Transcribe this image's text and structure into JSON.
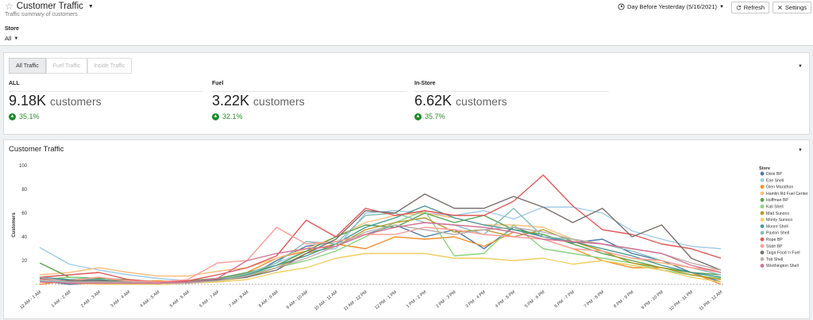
{
  "header": {
    "title": "Customer Traffic",
    "subtitle": "Traffic summary of customers",
    "store_label": "Store",
    "store_value": "All",
    "date_range": "Day Before Yesterday (5/16/2021)",
    "refresh_label": "Refresh",
    "settings_label": "Settings"
  },
  "tabs": [
    "All Traffic",
    "Fuel Traffic",
    "Inside Traffic"
  ],
  "kpis": [
    {
      "label": "ALL",
      "value": "9.18K",
      "unit": "customers",
      "change": "35.1%"
    },
    {
      "label": "Fuel",
      "value": "3.22K",
      "unit": "customers",
      "change": "32.1%"
    },
    {
      "label": "In-Store",
      "value": "6.62K",
      "unit": "customers",
      "change": "35.7%"
    }
  ],
  "colors": {
    "up": "#1f8a2e"
  },
  "chart_title": "Customer Traffic",
  "chart_data": {
    "type": "line",
    "ylabel": "Customers",
    "ylim": [
      0,
      100
    ],
    "yticks": [
      20,
      40,
      60,
      80,
      100
    ],
    "legend_title": "Store",
    "legend_position": "right",
    "x": [
      "12 AM - 1 AM",
      "1 AM - 2 AM",
      "2 AM - 3 AM",
      "3 AM - 4 AM",
      "4 AM - 5 AM",
      "5 AM - 6 AM",
      "6 AM - 7 AM",
      "7 AM - 8 AM",
      "8 AM - 9 AM",
      "9 AM - 10 AM",
      "10 AM - 11 AM",
      "11 AM - 12 PM",
      "12 PM - 1 PM",
      "1 PM - 2 PM",
      "2 PM - 3 PM",
      "3 PM - 4 PM",
      "4 PM - 5 PM",
      "5 PM - 6 PM",
      "6 PM - 7 PM",
      "7 PM - 8 PM",
      "8 PM - 9 PM",
      "9 PM - 10 PM",
      "10 PM - 11 PM",
      "11 PM - 12 AM"
    ],
    "series": [
      {
        "name": "Dixie BP",
        "color": "#4e79a7",
        "values": [
          3,
          0,
          1,
          1,
          0,
          1,
          4,
          6,
          20,
          32,
          36,
          42,
          50,
          40,
          46,
          30,
          48,
          40,
          35,
          38,
          26,
          20,
          10,
          2
        ]
      },
      {
        "name": "Erie Shell",
        "color": "#a0cbe8",
        "values": [
          31,
          17,
          12,
          8,
          5,
          3,
          5,
          8,
          18,
          28,
          30,
          60,
          62,
          60,
          58,
          62,
          55,
          65,
          65,
          60,
          45,
          38,
          32,
          30
        ]
      },
      {
        "name": "Glen Marathon",
        "color": "#f28e2b",
        "values": [
          0,
          3,
          6,
          2,
          3,
          2,
          4,
          10,
          22,
          28,
          34,
          30,
          40,
          38,
          40,
          32,
          44,
          38,
          30,
          20,
          14,
          14,
          10,
          0
        ]
      },
      {
        "name": "Hamlin Rd Fuel Center",
        "color": "#ffbe7d",
        "values": [
          8,
          10,
          14,
          10,
          7,
          7,
          11,
          14,
          22,
          30,
          40,
          52,
          58,
          60,
          56,
          50,
          50,
          48,
          38,
          28,
          22,
          18,
          14,
          12
        ]
      },
      {
        "name": "Huffman BP",
        "color": "#59a14f",
        "values": [
          18,
          6,
          5,
          4,
          2,
          3,
          5,
          10,
          16,
          28,
          40,
          50,
          48,
          60,
          52,
          58,
          46,
          42,
          34,
          26,
          20,
          14,
          10,
          8
        ]
      },
      {
        "name": "Kali Shell",
        "color": "#8cd17d",
        "values": [
          4,
          6,
          4,
          2,
          1,
          2,
          4,
          8,
          14,
          20,
          28,
          40,
          52,
          62,
          24,
          26,
          50,
          30,
          26,
          22,
          18,
          12,
          8,
          5
        ]
      },
      {
        "name": "Mad Sunoco",
        "color": "#b6992d",
        "values": [
          6,
          2,
          2,
          1,
          1,
          2,
          3,
          6,
          14,
          26,
          32,
          46,
          52,
          56,
          44,
          46,
          40,
          46,
          36,
          28,
          18,
          14,
          8,
          4
        ]
      },
      {
        "name": "Monty Sunoco",
        "color": "#f1ce63",
        "values": [
          2,
          1,
          0,
          0,
          0,
          1,
          2,
          4,
          10,
          14,
          22,
          26,
          26,
          26,
          22,
          22,
          20,
          22,
          17,
          20,
          16,
          12,
          6,
          2
        ]
      },
      {
        "name": "Moore Shell",
        "color": "#499894",
        "values": [
          6,
          4,
          4,
          2,
          2,
          2,
          3,
          8,
          16,
          24,
          34,
          48,
          56,
          66,
          56,
          50,
          46,
          40,
          36,
          30,
          24,
          16,
          10,
          6
        ]
      },
      {
        "name": "Paxton Shell",
        "color": "#86bcb6",
        "values": [
          3,
          2,
          3,
          1,
          1,
          2,
          4,
          9,
          18,
          36,
          34,
          58,
          60,
          52,
          50,
          42,
          64,
          40,
          38,
          34,
          28,
          20,
          14,
          8
        ]
      },
      {
        "name": "Rope BP",
        "color": "#e15759",
        "values": [
          6,
          8,
          10,
          4,
          2,
          3,
          8,
          14,
          24,
          54,
          40,
          64,
          58,
          62,
          58,
          58,
          70,
          92,
          66,
          46,
          42,
          34,
          30,
          22
        ]
      },
      {
        "name": "State BP",
        "color": "#ff9d9a",
        "values": [
          4,
          3,
          6,
          3,
          2,
          4,
          18,
          20,
          48,
          34,
          36,
          42,
          42,
          48,
          46,
          42,
          40,
          38,
          30,
          28,
          22,
          20,
          14,
          10
        ]
      },
      {
        "name": "Taiga Food 'n Fuel",
        "color": "#79706e",
        "values": [
          5,
          3,
          3,
          2,
          1,
          2,
          4,
          6,
          12,
          26,
          38,
          62,
          60,
          76,
          64,
          64,
          74,
          65,
          52,
          64,
          40,
          50,
          22,
          12
        ]
      },
      {
        "name": "Tob Shell",
        "color": "#bab0ac",
        "values": [
          6,
          2,
          2,
          2,
          1,
          1,
          3,
          7,
          14,
          22,
          32,
          44,
          50,
          46,
          42,
          46,
          48,
          44,
          38,
          34,
          30,
          26,
          18,
          12
        ]
      },
      {
        "name": "Worthington Shell",
        "color": "#d37295",
        "values": [
          2,
          1,
          1,
          1,
          1,
          2,
          5,
          20,
          26,
          30,
          32,
          42,
          48,
          52,
          50,
          48,
          44,
          38,
          36,
          34,
          30,
          26,
          16,
          10
        ]
      }
    ]
  }
}
